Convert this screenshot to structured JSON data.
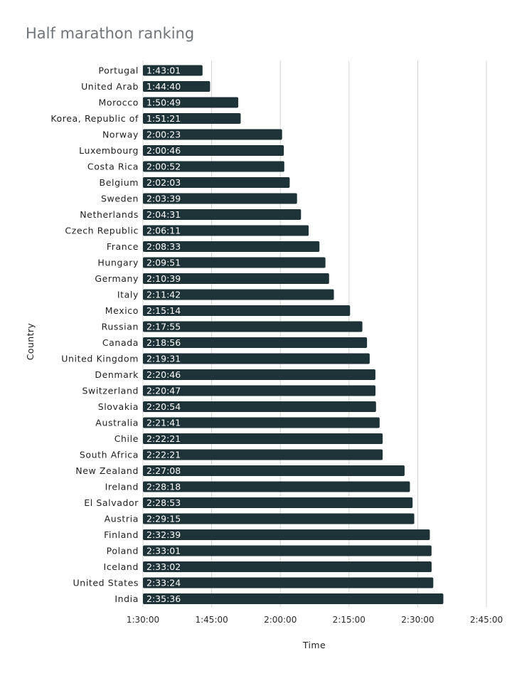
{
  "chart_data": {
    "type": "bar",
    "orientation": "horizontal",
    "title": "Half marathon ranking",
    "xlabel": "Time",
    "ylabel": "Country",
    "xlim": [
      "1:30:00",
      "2:45:00"
    ],
    "x_ticks": [
      "1:30:00",
      "1:45:00",
      "2:00:00",
      "2:15:00",
      "2:30:00",
      "2:45:00"
    ],
    "grid": true,
    "legend": "none",
    "bar_color": "#1e3338",
    "categories": [
      "Portugal",
      "United Arab",
      "Morocco",
      "Korea, Republic of",
      "Norway",
      "Luxembourg",
      "Costa Rica",
      "Belgium",
      "Sweden",
      "Netherlands",
      "Czech Republic",
      "France",
      "Hungary",
      "Germany",
      "Italy",
      "Mexico",
      "Russian",
      "Canada",
      "United Kingdom",
      "Denmark",
      "Switzerland",
      "Slovakia",
      "Australia",
      "Chile",
      "South Africa",
      "New Zealand",
      "Ireland",
      "El Salvador",
      "Austria",
      "Finland",
      "Poland",
      "Iceland",
      "United States",
      "India"
    ],
    "values": [
      "1:43:01",
      "1:44:40",
      "1:50:49",
      "1:51:21",
      "2:00:23",
      "2:00:46",
      "2:00:52",
      "2:02:03",
      "2:03:39",
      "2:04:31",
      "2:06:11",
      "2:08:33",
      "2:09:51",
      "2:10:39",
      "2:11:42",
      "2:15:14",
      "2:17:55",
      "2:18:56",
      "2:19:31",
      "2:20:46",
      "2:20:47",
      "2:20:54",
      "2:21:41",
      "2:22:21",
      "2:22:21",
      "2:27:08",
      "2:28:18",
      "2:28:53",
      "2:29:15",
      "2:32:39",
      "2:33:01",
      "2:33:02",
      "2:33:24",
      "2:35:36"
    ]
  }
}
